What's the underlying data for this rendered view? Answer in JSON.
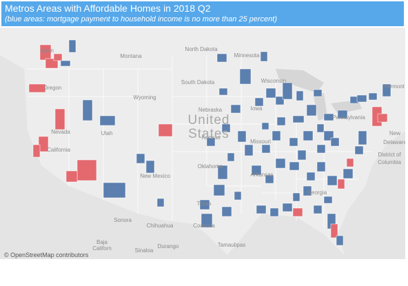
{
  "header": {
    "title": "Metros Areas with Affordable Homes  in 2018 Q2",
    "subtitle": "(blue areas:  mortgage payment to household income is  no more than 25 percent)"
  },
  "map": {
    "labels": [
      "ngton",
      "Montana",
      "North Dakota",
      "Minnesota",
      "South Dakota",
      "Wisconsin",
      "Vermont",
      "Oregon",
      "Wyoming",
      "Nebraska",
      "Iowa",
      "Pennsylvania",
      "New",
      "Delaware",
      "District of",
      "Columbia",
      "Nevada",
      "Utah",
      "Kansas",
      "Missouri",
      "California",
      "Oklahoma",
      "New Mexico",
      "Arkansas",
      "Texas",
      "Georgia",
      "Sonora",
      "Chihuahua",
      "Baja",
      "Californ",
      "Coahuila",
      "Sinaloa",
      "Durango",
      "Tamaulipas"
    ],
    "country": [
      "United",
      "States"
    ],
    "attribution": "© OpenStreetMap contributors"
  }
}
